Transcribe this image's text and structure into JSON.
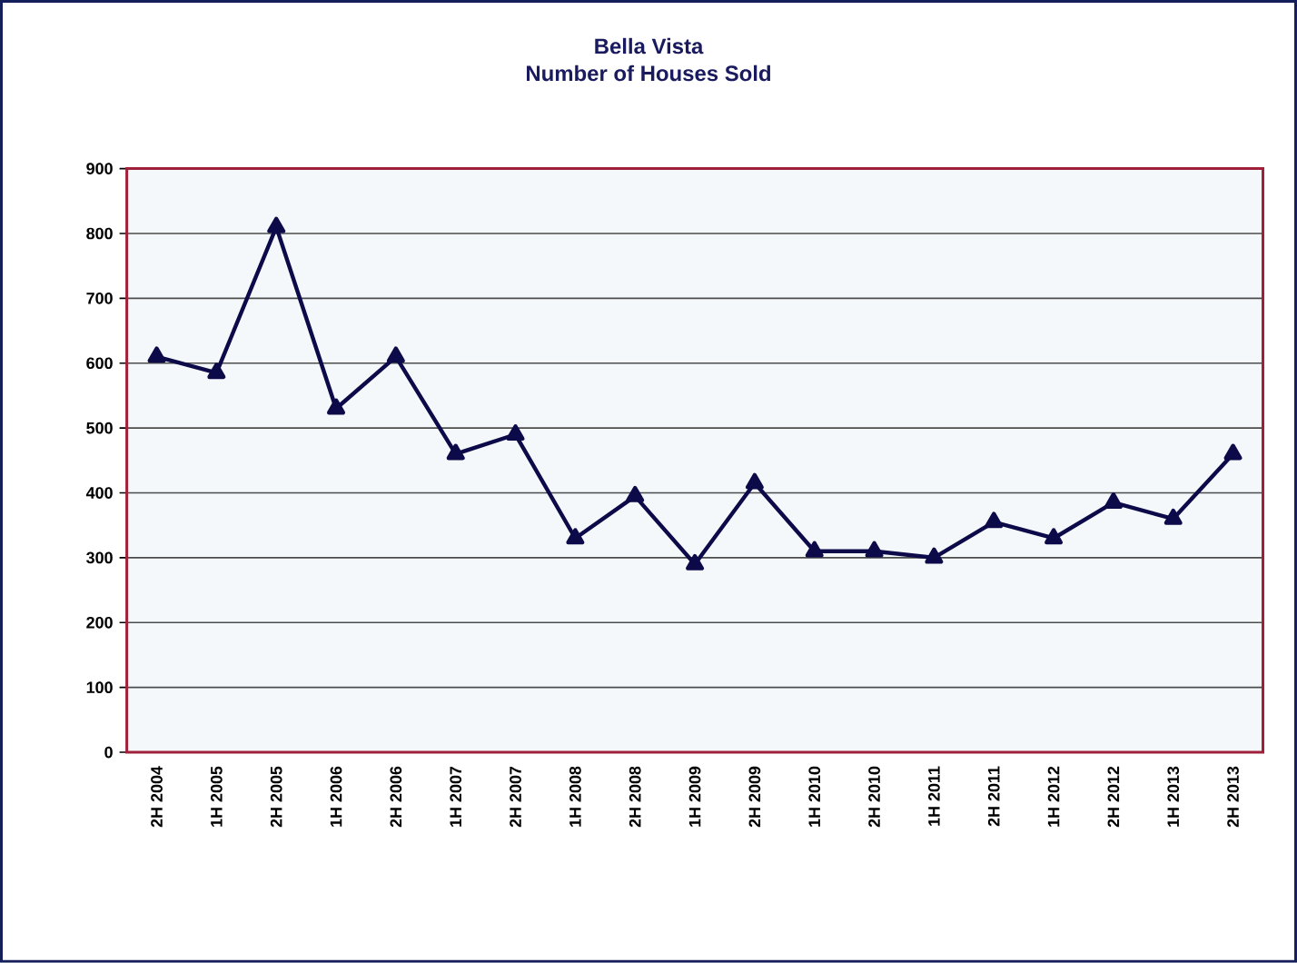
{
  "chart_data": {
    "type": "line",
    "title": "Bella Vista",
    "subtitle": "Number of Houses Sold",
    "categories": [
      "2H 2004",
      "1H 2005",
      "2H 2005",
      "1H 2006",
      "2H 2006",
      "1H 2007",
      "2H 2007",
      "1H 2008",
      "2H 2008",
      "1H 2009",
      "2H 2009",
      "1H 2010",
      "2H 2010",
      "1H 2011",
      "2H 2011",
      "1H 2012",
      "2H 2012",
      "1H 2013",
      "2H 2013"
    ],
    "series": [
      {
        "color": "#0d0a4a",
        "values": [
          610,
          585,
          810,
          530,
          610,
          460,
          490,
          330,
          395,
          290,
          415,
          310,
          310,
          300,
          355,
          330,
          385,
          360,
          460
        ]
      }
    ],
    "ylim": [
      0,
      900
    ],
    "yticks": [
      0,
      100,
      200,
      300,
      400,
      500,
      600,
      700,
      800,
      900
    ],
    "grid": "y",
    "marker": "triangle",
    "line_style": "solid"
  }
}
